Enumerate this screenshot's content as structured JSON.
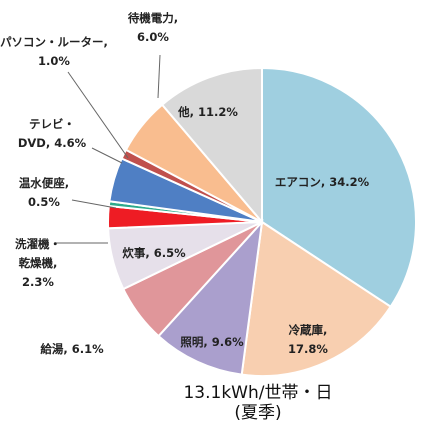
{
  "chart_data": {
    "type": "pie",
    "title": "13.1kWh/世帯・日",
    "subtitle": "(夏季)",
    "slices": [
      {
        "label_lines": [
          "エアコン, 34.2%"
        ],
        "value": 34.2,
        "color": "#9fcfe0"
      },
      {
        "label_lines": [
          "冷蔵庫,",
          "17.8%"
        ],
        "value": 17.8,
        "color": "#f8cfb0"
      },
      {
        "label_lines": [
          "照明, 9.6%"
        ],
        "value": 9.6,
        "color": "#aa9fcd"
      },
      {
        "label_lines": [
          "給湯, 6.1%"
        ],
        "value": 6.1,
        "color": "#e0969a"
      },
      {
        "label_lines": [
          "炊事, 6.5%"
        ],
        "value": 6.5,
        "color": "#e6e0ea"
      },
      {
        "label_lines": [
          "洗濯機・",
          "乾燥機,",
          "2.3%"
        ],
        "value": 2.3,
        "color": "#ee1c24"
      },
      {
        "label_lines": [
          "温水便座,",
          "0.5%"
        ],
        "value": 0.5,
        "color": "#2daa8c"
      },
      {
        "label_lines": [
          "テレビ・",
          "DVD, 4.6%"
        ],
        "value": 4.6,
        "color": "#4f7fc4"
      },
      {
        "label_lines": [
          "パソコン・ルーター,",
          "1.0%"
        ],
        "value": 1.0,
        "color": "#c0504d"
      },
      {
        "label_lines": [
          "待機電力,",
          "6.0%"
        ],
        "value": 6.0,
        "color": "#f9bd8f"
      },
      {
        "label_lines": [
          "他, 11.2%"
        ],
        "value": 11.2,
        "color": "#d9d9d9"
      }
    ]
  }
}
